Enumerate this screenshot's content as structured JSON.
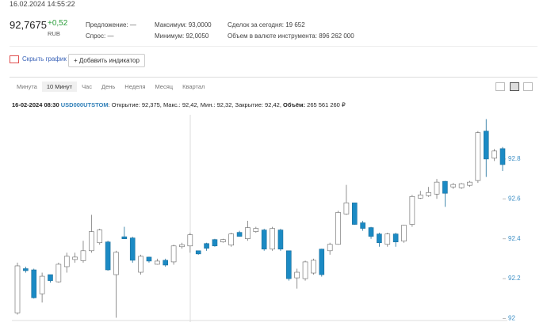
{
  "header": {
    "timestamp": "16.02.2024 14:55:22",
    "price": "92,7675",
    "change": "+0,52",
    "currency": "RUB",
    "offer": "Предложение: —",
    "demand": "Спрос: —",
    "max": "Максимум: 93,0000",
    "min": "Минимум: 92,0050",
    "deals": "Сделок за сегодня: 19 652",
    "volume": "Объем в валюте инструмента: 896 262 000"
  },
  "buttons": {
    "hide_chart": "Скрыть график",
    "add_indicator": "+ Добавить индикатор"
  },
  "tabs": [
    "Минута",
    "10 Минут",
    "Час",
    "День",
    "Неделя",
    "Месяц",
    "Квартал"
  ],
  "active_tab": 1,
  "info": {
    "time": "16-02-2024 08:30",
    "ticker": "USD000UTSTOM",
    "text": ": Открытие: 92,375, Макс.: 92,42, Мин.: 92,32, Закрытие: 92,42, ",
    "volume_label": "Объём:",
    "volume": " 265 561 260 ₽"
  },
  "chart_data": {
    "type": "candlestick",
    "up_color": "#ffffff",
    "down_color": "#1b8ac4",
    "ylim": [
      91.99,
      93.01
    ],
    "yticks": [
      92,
      92.2,
      92.4,
      92.6,
      92.8
    ],
    "open": [
      92.028,
      92.25,
      92.244,
      92.124,
      92.22,
      92.184,
      92.26,
      92.296,
      92.29,
      92.34,
      92.38,
      92.384,
      92.22,
      92.41,
      92.404,
      92.232,
      92.308,
      92.272,
      92.292,
      92.284,
      92.36,
      92.364,
      92.34,
      92.376,
      92.396,
      92.384,
      92.368,
      92.432,
      92.4,
      92.436,
      92.444,
      92.348,
      92.444,
      92.34,
      92.204,
      92.2,
      92.228,
      92.348,
      92.34,
      92.372,
      92.524,
      92.58,
      92.48,
      92.456,
      92.424,
      92.372,
      92.424,
      92.388,
      92.472,
      92.604,
      92.616,
      92.624,
      92.688,
      92.66,
      92.656,
      92.668,
      92.692,
      92.94,
      92.804,
      92.852
    ],
    "high": [
      92.28,
      92.26,
      92.25,
      92.23,
      92.22,
      92.28,
      92.33,
      92.33,
      92.39,
      92.52,
      92.45,
      92.39,
      92.34,
      92.46,
      92.41,
      92.32,
      92.31,
      92.3,
      92.3,
      92.37,
      92.38,
      92.43,
      92.34,
      92.38,
      92.4,
      92.4,
      92.43,
      92.44,
      92.49,
      92.46,
      92.45,
      92.46,
      92.45,
      92.34,
      92.25,
      92.29,
      92.3,
      92.35,
      92.38,
      92.54,
      92.67,
      92.58,
      92.49,
      92.46,
      92.43,
      92.43,
      92.43,
      92.47,
      92.62,
      92.64,
      92.66,
      92.7,
      92.69,
      92.68,
      92.68,
      92.69,
      92.94,
      93.0,
      92.85,
      92.86
    ],
    "low": [
      92.02,
      92.23,
      92.1,
      92.08,
      92.18,
      92.18,
      92.23,
      92.28,
      92.28,
      92.33,
      92.37,
      92.24,
      92.004,
      92.4,
      92.28,
      92.22,
      92.28,
      92.27,
      92.26,
      92.27,
      92.35,
      92.33,
      92.32,
      92.34,
      92.36,
      92.38,
      92.36,
      92.41,
      92.39,
      92.43,
      92.34,
      92.34,
      92.34,
      92.19,
      92.15,
      92.19,
      92.22,
      92.21,
      92.32,
      92.37,
      92.52,
      92.47,
      92.44,
      92.4,
      92.36,
      92.36,
      92.36,
      92.38,
      92.46,
      92.6,
      92.61,
      92.6,
      92.56,
      92.65,
      92.65,
      92.66,
      92.68,
      92.71,
      92.79,
      92.74
    ],
    "close": [
      92.264,
      92.24,
      92.104,
      92.212,
      92.19,
      92.272,
      92.312,
      92.308,
      92.34,
      92.436,
      92.444,
      92.244,
      92.332,
      92.4,
      92.292,
      92.312,
      92.288,
      92.288,
      92.268,
      92.364,
      92.37,
      92.42,
      92.324,
      92.352,
      92.364,
      92.396,
      92.424,
      92.412,
      92.456,
      92.452,
      92.348,
      92.452,
      92.348,
      92.2,
      92.232,
      92.284,
      92.292,
      92.22,
      92.372,
      92.532,
      92.58,
      92.472,
      92.452,
      92.412,
      92.38,
      92.424,
      92.384,
      92.468,
      92.612,
      92.62,
      92.632,
      92.684,
      92.628,
      92.672,
      92.676,
      92.684,
      92.932,
      92.8,
      92.84,
      92.772
    ]
  }
}
